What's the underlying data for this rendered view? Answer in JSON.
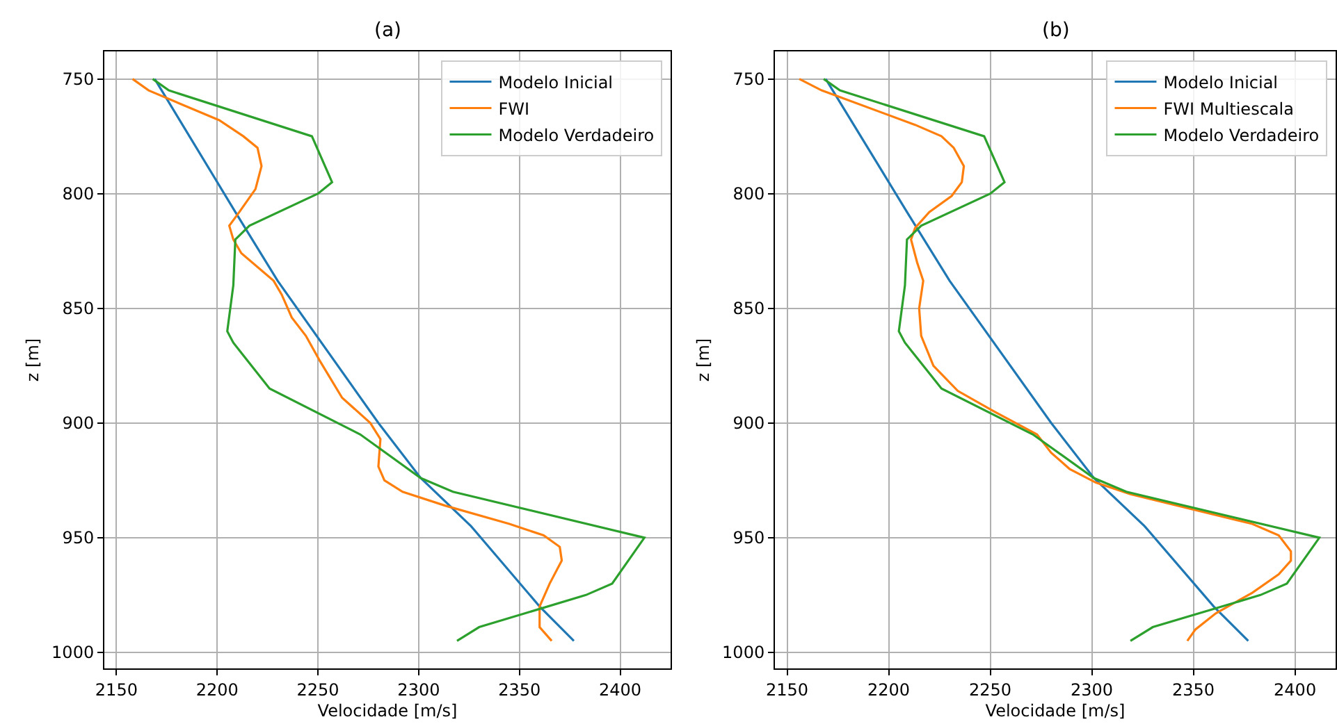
{
  "chart_data": [
    {
      "type": "line",
      "title": "(a)",
      "xlabel": "Velocidade [m/s]",
      "ylabel": "z [m]",
      "xlim": [
        2144,
        2425
      ],
      "ylim": [
        1007,
        738
      ],
      "xticks": [
        2150,
        2200,
        2250,
        2300,
        2350,
        2400
      ],
      "yticks": [
        750,
        800,
        850,
        900,
        950,
        1000
      ],
      "grid": true,
      "legend": "top right",
      "marker": "none",
      "line_style": "solid",
      "series": [
        {
          "name": "Modelo Inicial",
          "color": "#1f77b4",
          "x": [
            2169,
            2209,
            2230,
            2280,
            2301,
            2326,
            2360,
            2377
          ],
          "values": [
            750,
            808,
            838,
            900,
            924,
            945,
            980,
            995
          ]
        },
        {
          "name": "FWI",
          "color": "#ff7f0e",
          "x": [
            2158,
            2166,
            2201,
            2213,
            2220,
            2222,
            2219,
            2211,
            2206,
            2208,
            2212,
            2228,
            2232,
            2237,
            2244,
            2251,
            2262,
            2276,
            2281,
            2280,
            2283,
            2292,
            2313,
            2345,
            2362,
            2370,
            2371,
            2365,
            2360,
            2360,
            2366
          ],
          "values": [
            750,
            755,
            768,
            775,
            780,
            788,
            798,
            808,
            814,
            820,
            826,
            838,
            844,
            854,
            862,
            873,
            889,
            900,
            907,
            919,
            925,
            930,
            936,
            944,
            949,
            954,
            960,
            970,
            980,
            989,
            995
          ]
        },
        {
          "name": "Modelo Verdadeiro",
          "color": "#2ca02c",
          "x": [
            2168,
            2176,
            2247,
            2257,
            2250,
            2216,
            2209,
            2208,
            2205,
            2208,
            2226,
            2271,
            2301,
            2317,
            2412,
            2396,
            2383,
            2330,
            2319
          ],
          "values": [
            750,
            755,
            775,
            795,
            800,
            814,
            820,
            840,
            860,
            865,
            885,
            905,
            924,
            930,
            950,
            970,
            975,
            989,
            995
          ]
        }
      ]
    },
    {
      "type": "line",
      "title": "(b)",
      "xlabel": "Velocidade [m/s]",
      "ylabel": "z [m]",
      "xlim": [
        2144,
        2420
      ],
      "ylim": [
        1007,
        738
      ],
      "xticks": [
        2150,
        2200,
        2250,
        2300,
        2350,
        2400
      ],
      "yticks": [
        750,
        800,
        850,
        900,
        950,
        1000
      ],
      "grid": true,
      "legend": "top right",
      "marker": "none",
      "line_style": "solid",
      "series": [
        {
          "name": "Modelo Inicial",
          "color": "#1f77b4",
          "x": [
            2169,
            2209,
            2230,
            2280,
            2301,
            2326,
            2360,
            2377
          ],
          "values": [
            750,
            808,
            838,
            900,
            924,
            945,
            980,
            995
          ]
        },
        {
          "name": "FWI Multiescala",
          "color": "#ff7f0e",
          "x": [
            2156,
            2167,
            2213,
            2226,
            2232,
            2237,
            2236,
            2231,
            2220,
            2213,
            2211,
            2214,
            2217,
            2215,
            2216,
            2222,
            2234,
            2252,
            2273,
            2280,
            2289,
            2302,
            2319,
            2379,
            2392,
            2398,
            2398,
            2392,
            2379,
            2361,
            2351,
            2347
          ],
          "values": [
            750,
            755,
            770,
            775,
            780,
            788,
            795,
            801,
            808,
            815,
            820,
            830,
            838,
            850,
            862,
            875,
            886,
            895,
            905,
            913,
            920,
            926,
            931,
            944,
            949,
            956,
            960,
            966,
            974,
            983,
            990,
            995
          ]
        },
        {
          "name": "Modelo Verdadeiro",
          "color": "#2ca02c",
          "x": [
            2168,
            2176,
            2247,
            2257,
            2250,
            2216,
            2209,
            2208,
            2205,
            2208,
            2226,
            2271,
            2301,
            2317,
            2412,
            2396,
            2383,
            2330,
            2319
          ],
          "values": [
            750,
            755,
            775,
            795,
            800,
            814,
            820,
            840,
            860,
            865,
            885,
            905,
            924,
            930,
            950,
            970,
            975,
            989,
            995
          ]
        }
      ]
    }
  ]
}
